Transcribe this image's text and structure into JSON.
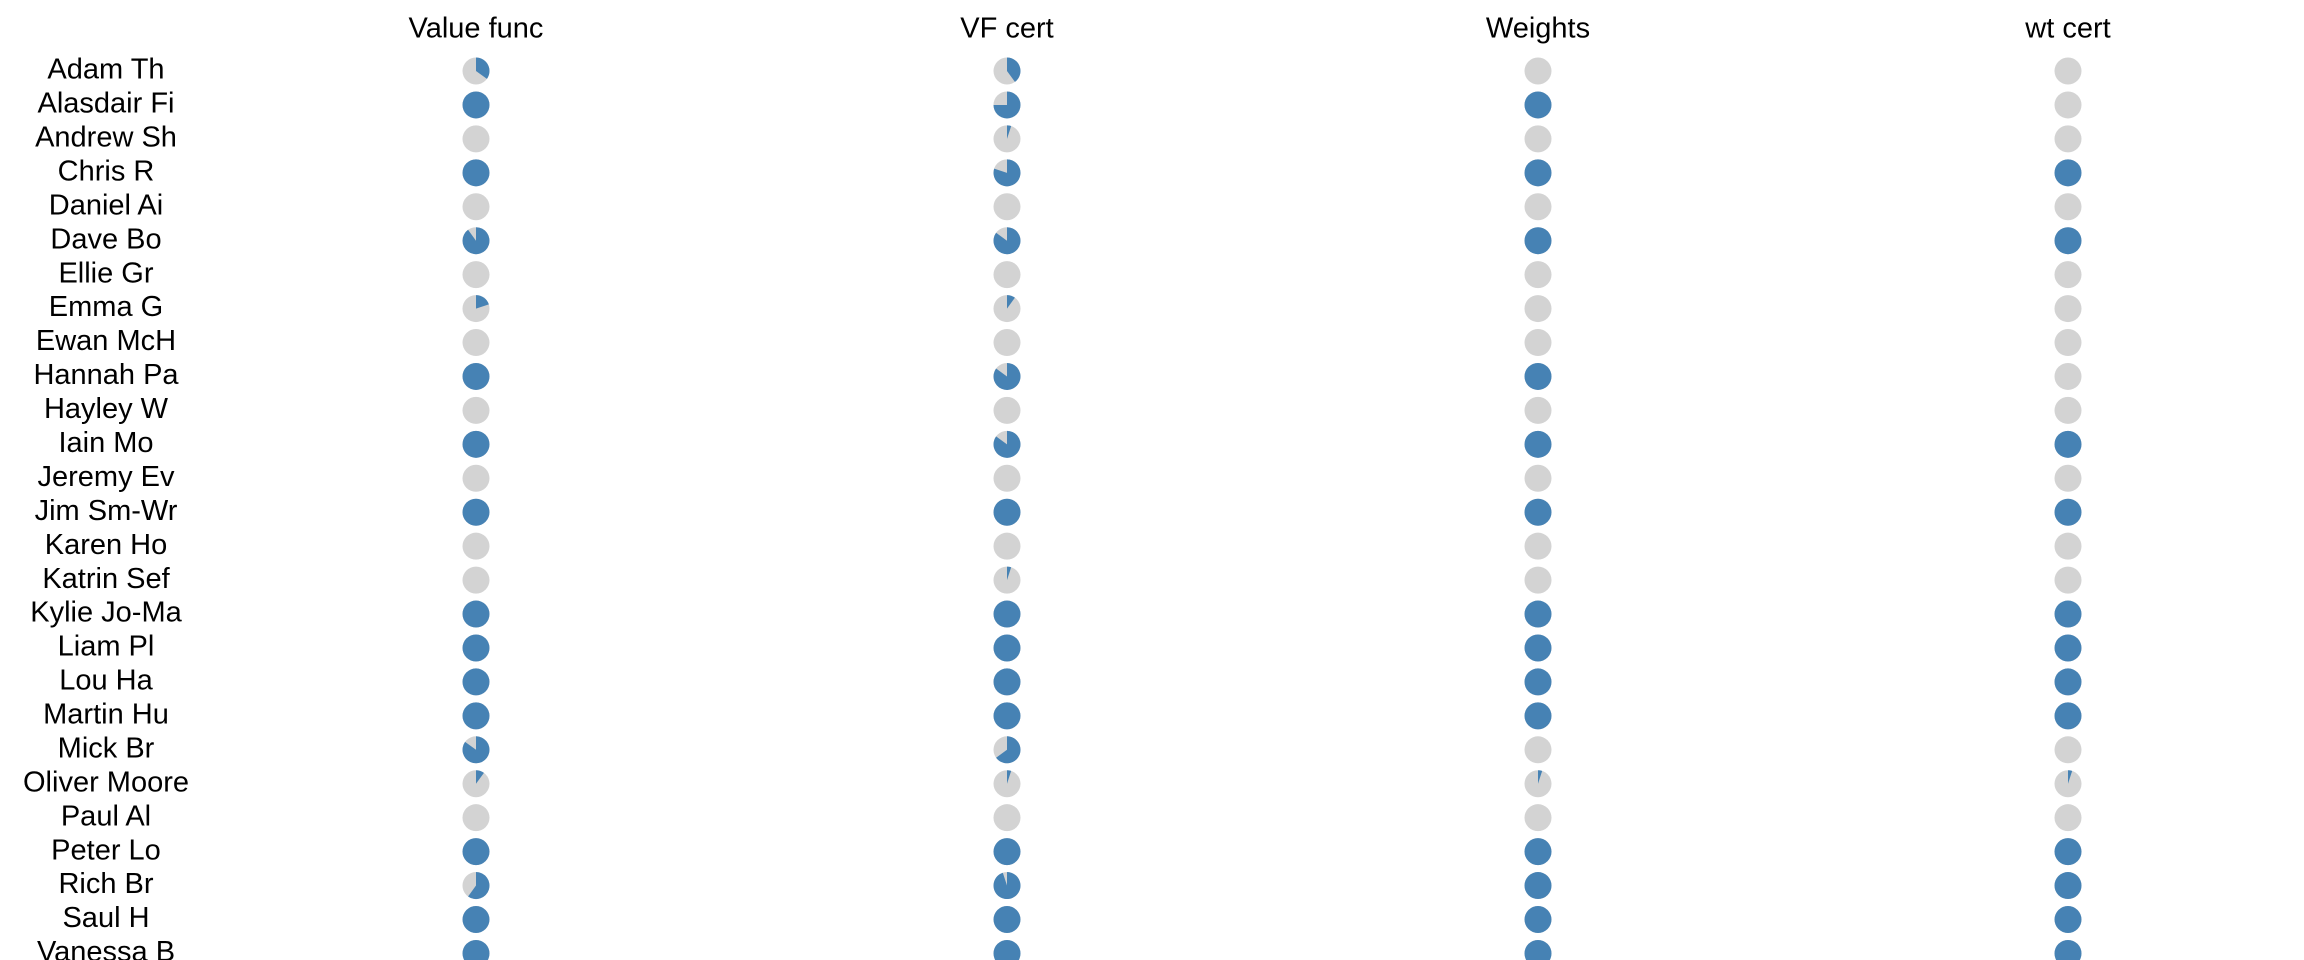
{
  "chart_data": {
    "type": "pie-matrix",
    "columns": [
      "Value func",
      "VF cert",
      "Weights",
      "wt cert"
    ],
    "rows": [
      {
        "label": "Adam Th",
        "values": [
          0.35,
          0.4,
          0.0,
          0.0
        ]
      },
      {
        "label": "Alasdair Fi",
        "values": [
          1.0,
          0.75,
          1.0,
          0.0
        ]
      },
      {
        "label": "Andrew Sh",
        "values": [
          0.0,
          0.05,
          0.0,
          0.0
        ]
      },
      {
        "label": "Chris R",
        "values": [
          1.0,
          0.8,
          1.0,
          1.0
        ]
      },
      {
        "label": "Daniel Ai",
        "values": [
          0.0,
          0.0,
          0.0,
          0.0
        ]
      },
      {
        "label": "Dave Bo",
        "values": [
          0.9,
          0.85,
          1.0,
          1.0
        ]
      },
      {
        "label": "Ellie Gr",
        "values": [
          0.0,
          0.0,
          0.0,
          0.0
        ]
      },
      {
        "label": "Emma G",
        "values": [
          0.2,
          0.1,
          0.0,
          0.0
        ]
      },
      {
        "label": "Ewan McH",
        "values": [
          0.0,
          0.0,
          0.0,
          0.0
        ]
      },
      {
        "label": "Hannah Pa",
        "values": [
          1.0,
          0.85,
          1.0,
          0.0
        ]
      },
      {
        "label": "Hayley W",
        "values": [
          0.0,
          0.0,
          0.0,
          0.0
        ]
      },
      {
        "label": "Iain Mo",
        "values": [
          1.0,
          0.85,
          1.0,
          1.0
        ]
      },
      {
        "label": "Jeremy Ev",
        "values": [
          0.0,
          0.0,
          0.0,
          0.0
        ]
      },
      {
        "label": "Jim Sm-Wr",
        "values": [
          1.0,
          1.0,
          1.0,
          1.0
        ]
      },
      {
        "label": "Karen Ho",
        "values": [
          0.0,
          0.0,
          0.0,
          0.0
        ]
      },
      {
        "label": "Katrin Sef",
        "values": [
          0.0,
          0.05,
          0.0,
          0.0
        ]
      },
      {
        "label": "Kylie Jo-Ma",
        "values": [
          1.0,
          1.0,
          1.0,
          1.0
        ]
      },
      {
        "label": "Liam Pl",
        "values": [
          1.0,
          1.0,
          1.0,
          1.0
        ]
      },
      {
        "label": "Lou Ha",
        "values": [
          1.0,
          1.0,
          1.0,
          1.0
        ]
      },
      {
        "label": "Martin Hu",
        "values": [
          1.0,
          1.0,
          1.0,
          1.0
        ]
      },
      {
        "label": "Mick Br",
        "values": [
          0.85,
          0.65,
          0.0,
          0.0
        ]
      },
      {
        "label": "Oliver Moore",
        "values": [
          0.1,
          0.05,
          0.05,
          0.05
        ]
      },
      {
        "label": "Paul Al",
        "values": [
          0.0,
          0.0,
          0.0,
          0.0
        ]
      },
      {
        "label": "Peter Lo",
        "values": [
          1.0,
          1.0,
          1.0,
          1.0
        ]
      },
      {
        "label": "Rich Br",
        "values": [
          0.6,
          0.95,
          1.0,
          1.0
        ]
      },
      {
        "label": "Saul H",
        "values": [
          1.0,
          1.0,
          1.0,
          1.0
        ]
      },
      {
        "label": "Vanessa B",
        "values": [
          1.0,
          1.0,
          1.0,
          1.0
        ]
      }
    ],
    "colors": {
      "filled": "#4682b4",
      "empty": "#d3d3d3"
    },
    "grid": false,
    "legend": "none"
  }
}
